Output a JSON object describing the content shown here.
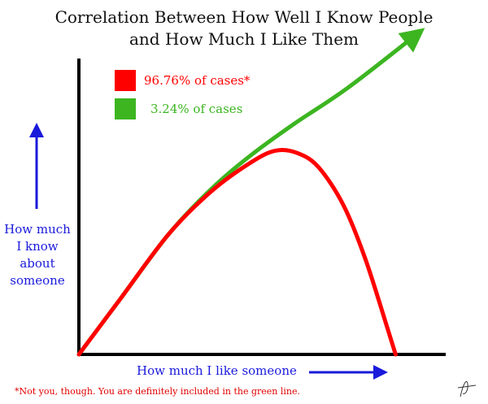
{
  "title_lines": [
    "Correlation Between How Well I Know People",
    "and How Much I Like Them"
  ],
  "colors": {
    "red": "#ff0000",
    "green": "#3cb521",
    "blue": "#1a1adb"
  },
  "footnote": "*Not you, though.  You are definitely included in the green line.",
  "chart_data": {
    "type": "line",
    "title": "Correlation Between How Well I Know People and How Much I Like Them",
    "xlabel": "How much I like someone",
    "ylabel": "How much I know about someone",
    "ylabel_lines": [
      "How much",
      "I know",
      "about",
      "someone"
    ],
    "axis_ticks": false,
    "grid": false,
    "legend_position": "top-left",
    "series": [
      {
        "name": "96.76% of cases*",
        "color": "#ff0000",
        "points": [
          [
            0,
            0
          ],
          [
            0.12,
            0.24
          ],
          [
            0.25,
            0.5
          ],
          [
            0.37,
            0.68
          ],
          [
            0.48,
            0.8
          ],
          [
            0.55,
            0.85
          ],
          [
            0.61,
            0.84
          ],
          [
            0.67,
            0.78
          ],
          [
            0.74,
            0.62
          ],
          [
            0.8,
            0.4
          ],
          [
            0.86,
            0.12
          ],
          [
            0.885,
            0
          ]
        ]
      },
      {
        "name": "3.24% of cases",
        "color": "#3cb521",
        "arrow": true,
        "points": [
          [
            0,
            0
          ],
          [
            0.12,
            0.24
          ],
          [
            0.25,
            0.5
          ],
          [
            0.37,
            0.69
          ],
          [
            0.48,
            0.83
          ],
          [
            0.6,
            0.96
          ],
          [
            0.75,
            1.11
          ],
          [
            0.94,
            1.33
          ]
        ]
      }
    ]
  }
}
